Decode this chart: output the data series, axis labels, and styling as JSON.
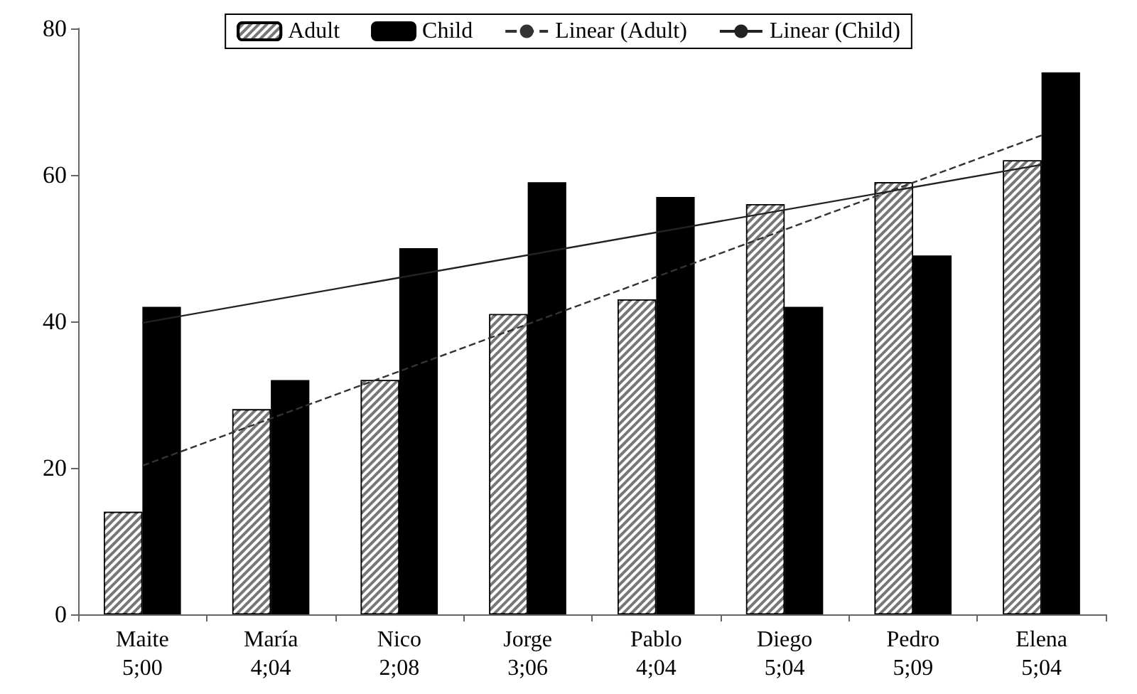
{
  "chart_data": {
    "type": "bar",
    "categories": [
      "Maite\n5;00",
      "María\n4;04",
      "Nico\n2;08",
      "Jorge\n3;06",
      "Pablo\n4;04",
      "Diego\n5;04",
      "Pedro\n5;09",
      "Elena\n5;04"
    ],
    "series": [
      {
        "name": "Adult",
        "color": "#777777",
        "values": [
          14,
          28,
          32,
          41,
          43,
          56,
          59,
          62
        ]
      },
      {
        "name": "Child",
        "color": "#000000",
        "values": [
          42,
          32,
          50,
          59,
          57,
          42,
          49,
          74
        ]
      },
      {
        "name": "Linear (Adult)",
        "type": "line",
        "line_style": "dashed",
        "color": "#333333",
        "x": [
          "Maite\n5;00",
          "Elena\n5;04"
        ],
        "values": [
          20.3,
          65.4
        ]
      },
      {
        "name": "Linear (Child)",
        "type": "line",
        "line_style": "solid",
        "color": "#222222",
        "x": [
          "Maite\n5;00",
          "Elena\n5;04"
        ],
        "values": [
          39.8,
          61.4
        ]
      }
    ],
    "ylim": [
      0,
      80
    ],
    "yticks": [
      0,
      20,
      40,
      60,
      80
    ],
    "grid": false,
    "legend": "top",
    "marker": "none"
  }
}
